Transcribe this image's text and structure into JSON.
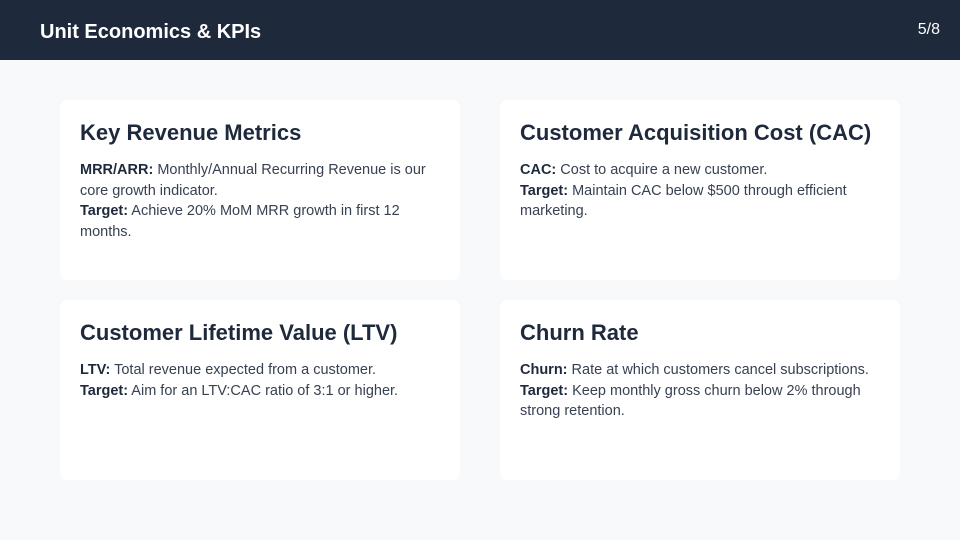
{
  "header": {
    "title": "Unit Economics & KPIs",
    "page_indicator": "5/8"
  },
  "colors": {
    "header_background": "#1e293b",
    "page_background": "#f8f9fb",
    "card_background": "#ffffff"
  },
  "cards": [
    {
      "title": "Key Revenue Metrics",
      "lines": [
        {
          "label": "MRR/ARR:",
          "text": " Monthly/Annual Recurring Revenue is our core growth indicator."
        },
        {
          "label": "Target:",
          "text": " Achieve 20% MoM MRR growth in first 12 months."
        }
      ]
    },
    {
      "title": "Customer Acquisition Cost (CAC)",
      "lines": [
        {
          "label": "CAC:",
          "text": " Cost to acquire a new customer."
        },
        {
          "label": "Target:",
          "text": " Maintain CAC below $500 through efficient marketing."
        }
      ]
    },
    {
      "title": "Customer Lifetime Value (LTV)",
      "lines": [
        {
          "label": "LTV:",
          "text": " Total revenue expected from a customer."
        },
        {
          "label": "Target:",
          "text": " Aim for an LTV:CAC ratio of 3:1 or higher."
        }
      ]
    },
    {
      "title": "Churn Rate",
      "lines": [
        {
          "label": "Churn:",
          "text": " Rate at which customers cancel subscriptions."
        },
        {
          "label": "Target:",
          "text": " Keep monthly gross churn below 2% through strong retention."
        }
      ]
    }
  ]
}
